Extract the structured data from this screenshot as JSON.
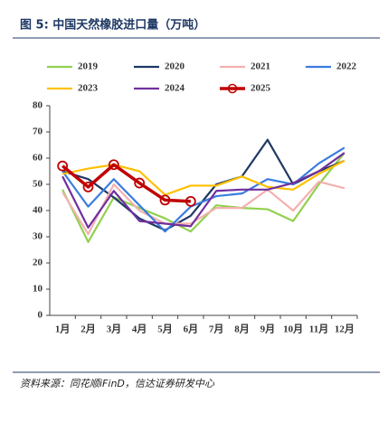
{
  "chart_data": {
    "type": "line",
    "title": "图 5:  中国天然橡胶进口量（万吨）",
    "source": "资料来源：同花顺iFinD，信达证券研发中心",
    "categories": [
      "1月",
      "2月",
      "3月",
      "4月",
      "5月",
      "6月",
      "7月",
      "8月",
      "9月",
      "10月",
      "11月",
      "12月"
    ],
    "series": [
      {
        "name": "2019",
        "color": "#92d050",
        "values": [
          48,
          28,
          45,
          41,
          37,
          32,
          42,
          41,
          40.5,
          36,
          50,
          62
        ]
      },
      {
        "name": "2020",
        "color": "#1f3864",
        "values": [
          55,
          52,
          45,
          37,
          32.5,
          38,
          50,
          53,
          67,
          50,
          55,
          59
        ]
      },
      {
        "name": "2021",
        "color": "#f4b0b0",
        "values": [
          47,
          31,
          50,
          40,
          35,
          35,
          41,
          41,
          48,
          40,
          51,
          48.5
        ]
      },
      {
        "name": "2022",
        "color": "#3a7dde",
        "values": [
          55,
          41.5,
          52,
          42,
          32,
          41.5,
          45.5,
          46.5,
          52,
          50,
          58,
          64
        ]
      },
      {
        "name": "2023",
        "color": "#ffc000",
        "values": [
          54,
          56,
          57.5,
          55,
          46,
          49.5,
          49.5,
          53,
          49,
          48,
          54,
          59
        ]
      },
      {
        "name": "2024",
        "color": "#7030a0",
        "values": [
          53,
          33.5,
          47.5,
          36,
          35,
          34,
          47.5,
          48,
          48,
          50.5,
          55,
          62
        ]
      },
      {
        "name": "2025",
        "color": "#c00000",
        "markers": true,
        "values": [
          57,
          49,
          57.5,
          50.5,
          44,
          43.5,
          null,
          null,
          null,
          null,
          null,
          null
        ]
      }
    ],
    "ylim": [
      0,
      80
    ],
    "yticks": [
      0,
      10,
      20,
      30,
      40,
      50,
      60,
      70,
      80
    ],
    "grid": false
  }
}
